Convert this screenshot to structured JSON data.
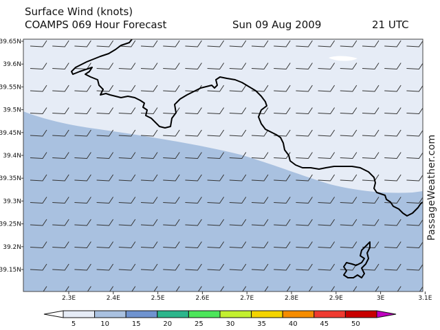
{
  "header": {
    "line1": "Surface Wind (knots)",
    "line2": "COAMPS 069 Hour Forecast",
    "date": "Sun 09 Aug 2009",
    "time": "21 UTC"
  },
  "watermark": "PassageWeather.com",
  "axes": {
    "lat_labels": [
      "39.65N",
      "39.6N",
      "39.55N",
      "39.5N",
      "39.45N",
      "39.4N",
      "39.35N",
      "39.3N",
      "39.25N",
      "39.2N",
      "39.15N"
    ],
    "lon_labels": [
      "2.3E",
      "2.4E",
      "2.5E",
      "2.6E",
      "2.7E",
      "2.8E",
      "2.9E",
      "3E",
      "3.1E"
    ]
  },
  "legend": {
    "labels": [
      "5",
      "10",
      "15",
      "20",
      "25",
      "30",
      "35",
      "40",
      "45",
      "50"
    ],
    "colors": [
      "#ffffff",
      "#e6ecf6",
      "#a9c1e0",
      "#6f93cf",
      "#2cb58b",
      "#4ce65a",
      "#c3f02f",
      "#f4d400",
      "#f58c00",
      "#ef3a30",
      "#c80000",
      "#c000c0"
    ]
  },
  "fill_colors": {
    "light_zone": "#e6ecf6",
    "medium_zone": "#a9c1e0",
    "calm_patch": "#ffffff",
    "coast": "#000000"
  },
  "barbs": {
    "direction": "westerly",
    "speed_knots": 10
  }
}
